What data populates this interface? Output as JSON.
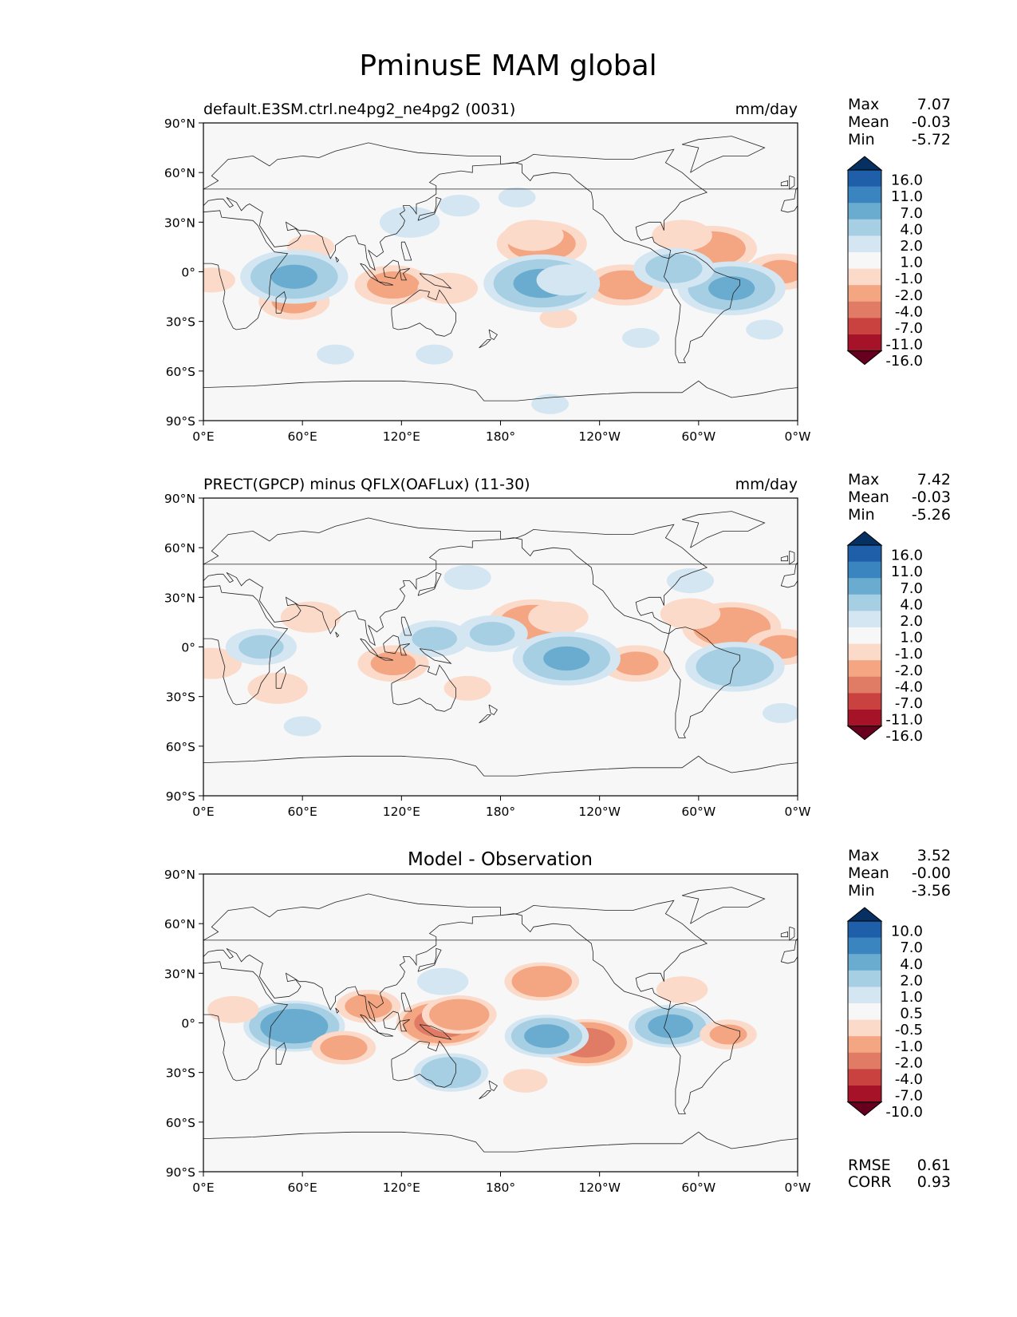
{
  "figure_title": "PminusE MAM global",
  "chart_data": [
    {
      "type": "heatmap",
      "title": "default.E3SM.ctrl.ne4pg2_ne4pg2 (0031)",
      "units": "mm/day",
      "stats": [
        {
          "label": "Max",
          "value": "7.07"
        },
        {
          "label": "Mean",
          "value": "-0.03"
        },
        {
          "label": "Min",
          "value": "-5.72"
        }
      ],
      "colorbar": {
        "levels": [
          "16.0",
          "11.0",
          "7.0",
          "4.0",
          "2.0",
          "1.0",
          "-1.0",
          "-2.0",
          "-4.0",
          "-7.0",
          "-11.0",
          "-16.0"
        ],
        "extend": "both"
      },
      "lat_ticks": [
        "90°N",
        "60°N",
        "30°N",
        "0°",
        "30°S",
        "60°S",
        "90°S"
      ],
      "lon_ticks": [
        "0°E",
        "60°E",
        "120°E",
        "180°",
        "120°W",
        "60°W",
        "0°W"
      ],
      "lat_range": [
        -90,
        90
      ],
      "lon_range": [
        0,
        360
      ],
      "features": [
        {
          "lon": 205,
          "lat": 17,
          "v": -3.5
        },
        {
          "lon": 200,
          "lat": 22,
          "v": -2.0
        },
        {
          "lon": 308,
          "lat": 14,
          "v": -3.5
        },
        {
          "lon": 290,
          "lat": 22,
          "v": -2.0
        },
        {
          "lon": 350,
          "lat": 0,
          "v": -2.5
        },
        {
          "lon": 255,
          "lat": -8,
          "v": -3.0
        },
        {
          "lon": 115,
          "lat": -8,
          "v": -2.8
        },
        {
          "lon": 148,
          "lat": -10,
          "v": -2.0
        },
        {
          "lon": 55,
          "lat": -18,
          "v": -2.5
        },
        {
          "lon": 5,
          "lat": -5,
          "v": -1.5
        },
        {
          "lon": 65,
          "lat": 15,
          "v": -1.5
        },
        {
          "lon": 215,
          "lat": -28,
          "v": -1.2
        },
        {
          "lon": 205,
          "lat": -7,
          "v": 5.0
        },
        {
          "lon": 220,
          "lat": -5,
          "v": 2.0
        },
        {
          "lon": 55,
          "lat": -3,
          "v": 4.5
        },
        {
          "lon": 320,
          "lat": -10,
          "v": 4.5
        },
        {
          "lon": 285,
          "lat": 2,
          "v": 3.0
        },
        {
          "lon": 155,
          "lat": 40,
          "v": 1.3
        },
        {
          "lon": 190,
          "lat": 45,
          "v": 1.2
        },
        {
          "lon": 125,
          "lat": 30,
          "v": 2.0
        },
        {
          "lon": 80,
          "lat": -50,
          "v": 1.2
        },
        {
          "lon": 140,
          "lat": -50,
          "v": 1.2
        },
        {
          "lon": 265,
          "lat": -40,
          "v": 1.2
        },
        {
          "lon": 340,
          "lat": -35,
          "v": 1.2
        },
        {
          "lon": 210,
          "lat": -80,
          "v": 1.2
        }
      ]
    },
    {
      "type": "heatmap",
      "title": "PRECT(GPCP) minus QFLX(OAFLux) (11-30)",
      "units": "mm/day",
      "stats": [
        {
          "label": "Max",
          "value": "7.42"
        },
        {
          "label": "Mean",
          "value": "-0.03"
        },
        {
          "label": "Min",
          "value": "-5.26"
        }
      ],
      "colorbar": {
        "levels": [
          "16.0",
          "11.0",
          "7.0",
          "4.0",
          "2.0",
          "1.0",
          "-1.0",
          "-2.0",
          "-4.0",
          "-7.0",
          "-11.0",
          "-16.0"
        ],
        "extend": "both"
      },
      "lat_ticks": [
        "90°N",
        "60°N",
        "30°N",
        "0°",
        "30°S",
        "60°S",
        "90°S"
      ],
      "lon_ticks": [
        "0°E",
        "60°E",
        "120°E",
        "180°",
        "120°W",
        "60°W",
        "0°W"
      ],
      "lat_range": [
        -90,
        90
      ],
      "lon_range": [
        0,
        360
      ],
      "features": [
        {
          "lon": 200,
          "lat": 15,
          "v": -3.5
        },
        {
          "lon": 215,
          "lat": 18,
          "v": -2.0
        },
        {
          "lon": 320,
          "lat": 12,
          "v": -4.0
        },
        {
          "lon": 295,
          "lat": 20,
          "v": -2.0
        },
        {
          "lon": 350,
          "lat": 0,
          "v": -2.5
        },
        {
          "lon": 262,
          "lat": -10,
          "v": -2.5
        },
        {
          "lon": 115,
          "lat": -10,
          "v": -2.5
        },
        {
          "lon": 160,
          "lat": -25,
          "v": -1.5
        },
        {
          "lon": 45,
          "lat": -25,
          "v": -2.0
        },
        {
          "lon": 5,
          "lat": -10,
          "v": -2.0
        },
        {
          "lon": 65,
          "lat": 18,
          "v": -2.0
        },
        {
          "lon": 175,
          "lat": 8,
          "v": 2.5
        },
        {
          "lon": 220,
          "lat": -7,
          "v": 4.5
        },
        {
          "lon": 140,
          "lat": 5,
          "v": 2.5
        },
        {
          "lon": 35,
          "lat": 0,
          "v": 2.5
        },
        {
          "lon": 322,
          "lat": -12,
          "v": 4.0
        },
        {
          "lon": 160,
          "lat": 42,
          "v": 1.5
        },
        {
          "lon": 295,
          "lat": 40,
          "v": 1.5
        },
        {
          "lon": 60,
          "lat": -48,
          "v": 1.2
        },
        {
          "lon": 350,
          "lat": -40,
          "v": 1.2
        }
      ]
    },
    {
      "type": "heatmap",
      "title": "Model - Observation",
      "units": "",
      "stats": [
        {
          "label": "Max",
          "value": "3.52"
        },
        {
          "label": "Mean",
          "value": "-0.00"
        },
        {
          "label": "Min",
          "value": "-3.56"
        }
      ],
      "metrics": [
        {
          "label": "RMSE",
          "value": "0.61"
        },
        {
          "label": "CORR",
          "value": "0.93"
        }
      ],
      "colorbar": {
        "levels": [
          "10.0",
          "7.0",
          "4.0",
          "2.0",
          "1.0",
          "0.5",
          "-0.5",
          "-1.0",
          "-2.0",
          "-4.0",
          "-7.0",
          "-10.0"
        ],
        "extend": "both"
      },
      "lat_ticks": [
        "90°N",
        "60°N",
        "30°N",
        "0°",
        "30°S",
        "60°S",
        "90°S"
      ],
      "lon_ticks": [
        "0°E",
        "60°E",
        "120°E",
        "180°",
        "120°W",
        "60°W",
        "0°W"
      ],
      "lat_range": [
        -90,
        90
      ],
      "lon_range": [
        0,
        360
      ],
      "features": [
        {
          "lon": 55,
          "lat": -2,
          "v": 3.5
        },
        {
          "lon": 145,
          "lat": 0,
          "v": -3.0
        },
        {
          "lon": 155,
          "lat": 5,
          "v": -2.0
        },
        {
          "lon": 205,
          "lat": 25,
          "v": -2.0
        },
        {
          "lon": 232,
          "lat": -12,
          "v": -3.0
        },
        {
          "lon": 208,
          "lat": -8,
          "v": 2.5
        },
        {
          "lon": 283,
          "lat": -2,
          "v": 2.5
        },
        {
          "lon": 150,
          "lat": -30,
          "v": 2.0
        },
        {
          "lon": 100,
          "lat": 10,
          "v": -1.5
        },
        {
          "lon": 85,
          "lat": -15,
          "v": -1.5
        },
        {
          "lon": 318,
          "lat": -7,
          "v": -1.2
        },
        {
          "lon": 290,
          "lat": 20,
          "v": -1.0
        },
        {
          "lon": 18,
          "lat": 8,
          "v": -1.0
        },
        {
          "lon": 195,
          "lat": -35,
          "v": -0.8
        },
        {
          "lon": 145,
          "lat": 25,
          "v": 1.0
        }
      ]
    }
  ]
}
